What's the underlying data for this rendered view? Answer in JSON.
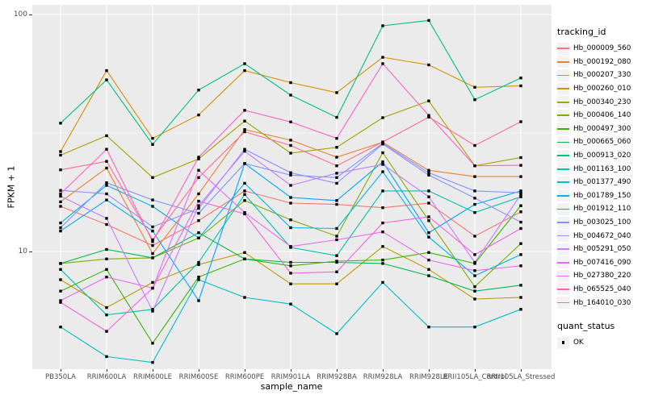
{
  "chart_data": {
    "type": "line",
    "title": "",
    "xlabel": "sample_name",
    "ylabel": "FPKM + 1",
    "y_scale": "log10",
    "y_ticks": [
      10,
      100
    ],
    "y_tick_labels": [
      "10",
      "100"
    ],
    "y_minor_gridline_values": [
      31.62
    ],
    "ylim": [
      3.2,
      106
    ],
    "grid": "on",
    "panel_bg": "#EBEBEB",
    "gridline_color": "#FFFFFF",
    "tick_label_color": "#4D4D4D",
    "point_marker": {
      "shape": "square",
      "color": "#000000",
      "size": 3.4
    },
    "categories": [
      "PB350LA",
      "RRIM600LA",
      "RRIM600LE",
      "RRIM600SE",
      "RRIM600PE",
      "RRIM901LA",
      "RRIM928BA",
      "RRIM928LA",
      "RRIM928LE",
      "RRII105LA_Control",
      "RRII105LA_Stressed"
    ],
    "series": [
      {
        "name": "Hb_000009_560",
        "color": "#F8766D",
        "values": [
          15.5,
          13,
          10.6,
          13.5,
          18,
          16,
          15.8,
          15.3,
          16,
          11.6,
          14.7
        ]
      },
      {
        "name": "Hb_000192_080",
        "color": "#EA8331",
        "values": [
          16.2,
          22.5,
          9.8,
          17.5,
          32.7,
          29.5,
          25,
          28.9,
          22,
          20.7,
          20.7
        ]
      },
      {
        "name": "Hb_000207_330",
        "color": "#D89000",
        "values": [
          26.4,
          58,
          30,
          37.7,
          58,
          51.6,
          46.8,
          66,
          61.3,
          49.3,
          50
        ]
      },
      {
        "name": "Hb_000260_010",
        "color": "#C09B00",
        "values": [
          7.6,
          5.8,
          7.4,
          8.8,
          9.9,
          7.3,
          7.3,
          10.5,
          8.4,
          6.3,
          6.4
        ]
      },
      {
        "name": "Hb_000340_230",
        "color": "#A3A500",
        "values": [
          25.5,
          30.8,
          20.5,
          24.6,
          35.5,
          26,
          27.5,
          36.7,
          43.2,
          23,
          24.9
        ]
      },
      {
        "name": "Hb_000406_140",
        "color": "#7CAE00",
        "values": [
          8.9,
          9.3,
          9.4,
          11.4,
          16.4,
          13.6,
          11.6,
          26.1,
          13.5,
          7.1,
          10.8
        ]
      },
      {
        "name": "Hb_000497_300",
        "color": "#39B600",
        "values": [
          6.8,
          8.4,
          4.1,
          7.8,
          9.3,
          8.7,
          9.1,
          9.2,
          9.9,
          8.9,
          15.6
        ]
      },
      {
        "name": "Hb_000665_060",
        "color": "#00BB4E",
        "values": [
          8.9,
          10.2,
          9.4,
          12,
          9.3,
          9,
          9,
          8.9,
          7.9,
          6.8,
          7.2
        ]
      },
      {
        "name": "Hb_000913_020",
        "color": "#00C087",
        "values": [
          34.8,
          53,
          28.3,
          48,
          62,
          45.7,
          36.8,
          89.6,
          94.4,
          43.7,
          54
        ]
      },
      {
        "name": "Hb_001163_100",
        "color": "#00C1AB",
        "values": [
          8.4,
          5.4,
          5.7,
          9,
          17.4,
          10.4,
          9.6,
          18,
          18,
          14.6,
          17
        ]
      },
      {
        "name": "Hb_001377_490",
        "color": "#00BDCB",
        "values": [
          4.8,
          3.6,
          3.4,
          7.6,
          6.4,
          6,
          4.5,
          7.4,
          4.8,
          4.8,
          5.7
        ]
      },
      {
        "name": "Hb_001789_150",
        "color": "#00B5EC",
        "values": [
          13.2,
          19,
          15.5,
          11.4,
          19.4,
          12.6,
          12.5,
          21.7,
          11.5,
          7.9,
          9.7
        ]
      },
      {
        "name": "Hb_001912_110",
        "color": "#00A7FF",
        "values": [
          12.2,
          16.5,
          12.2,
          6.2,
          23.5,
          16.9,
          16.4,
          23.9,
          12,
          15.8,
          18
        ]
      },
      {
        "name": "Hb_003025_100",
        "color": "#7C96FF",
        "values": [
          12.6,
          19.5,
          16.5,
          14.5,
          23.5,
          21,
          20.5,
          28.6,
          21.5,
          18,
          17.7
        ]
      },
      {
        "name": "Hb_004672_040",
        "color": "#9590FF",
        "values": [
          18.1,
          17.5,
          12.7,
          15.2,
          27,
          21.5,
          19.4,
          28.4,
          21,
          16.8,
          13.3
        ]
      },
      {
        "name": "Hb_005291_050",
        "color": "#C77CFF",
        "values": [
          17.1,
          13.8,
          5.6,
          15.6,
          26.5,
          19,
          21.4,
          23.3,
          17,
          9,
          17.4
        ]
      },
      {
        "name": "Hb_007416_090",
        "color": "#E76BF3",
        "values": [
          6.2,
          7.8,
          7,
          22,
          14.6,
          10.5,
          11.2,
          12.1,
          9.2,
          8.3,
          8.7
        ]
      },
      {
        "name": "Hb_027380_220",
        "color": "#F763E0",
        "values": [
          6.1,
          4.6,
          7,
          16.3,
          14.4,
          8.1,
          8.2,
          13.2,
          14,
          9.7,
          12.5
        ]
      },
      {
        "name": "Hb_065525_040",
        "color": "#FF61C7",
        "values": [
          17.5,
          27,
          11,
          25,
          39.4,
          35.2,
          30,
          62,
          37.5,
          23,
          23.1
        ]
      },
      {
        "name": "Hb_164010_030",
        "color": "#FF6C91",
        "values": [
          22.1,
          24,
          11.2,
          20.5,
          32,
          28,
          23,
          29,
          36.9,
          28,
          35.3
        ]
      }
    ]
  },
  "legend": {
    "tracking_title": "tracking_id",
    "quant_title": "quant_status",
    "quant_items": [
      {
        "label": "OK",
        "marker": "black-square"
      }
    ],
    "position": "right"
  }
}
